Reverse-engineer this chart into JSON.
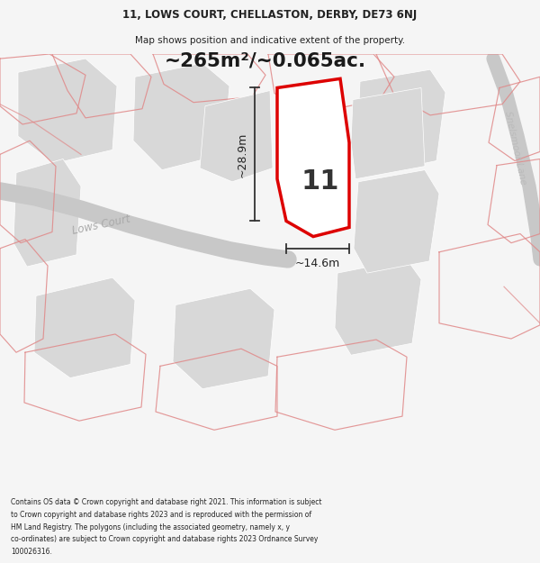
{
  "title_line1": "11, LOWS COURT, CHELLASTON, DERBY, DE73 6NJ",
  "title_line2": "Map shows position and indicative extent of the property.",
  "area_text": "~265m²/~0.065ac.",
  "dim_width": "~14.6m",
  "dim_height": "~28.9m",
  "plot_number": "11",
  "bg_color": "#f5f5f5",
  "map_bg": "#ffffff",
  "footer_lines": [
    "Contains OS data © Crown copyright and database right 2021. This information is subject",
    "to Crown copyright and database rights 2023 and is reproduced with the permission of",
    "HM Land Registry. The polygons (including the associated geometry, namely x, y",
    "co-ordinates) are subject to Crown copyright and database rights 2023 Ordnance Survey",
    "100026316."
  ],
  "red_outline": "#dd0000",
  "gray_fill": "#d8d8d8",
  "road_color": "#c8c8c8",
  "pink_border": "#e08888"
}
